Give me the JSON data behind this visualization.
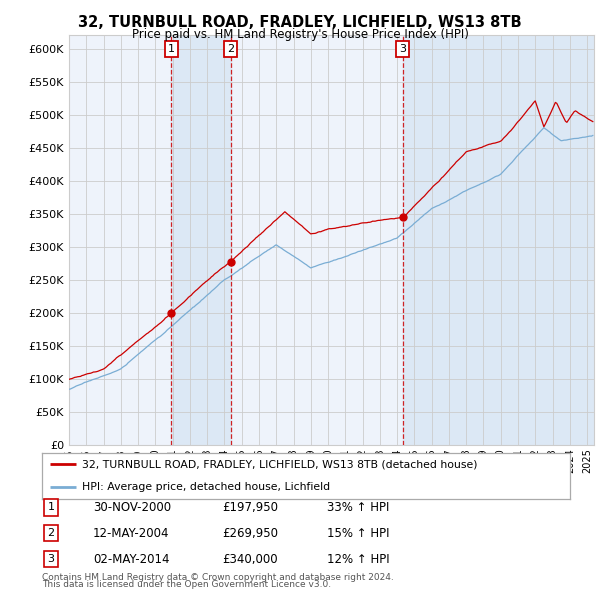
{
  "title": "32, TURNBULL ROAD, FRADLEY, LICHFIELD, WS13 8TB",
  "subtitle": "Price paid vs. HM Land Registry's House Price Index (HPI)",
  "ylim": [
    0,
    620000
  ],
  "yticks": [
    0,
    50000,
    100000,
    150000,
    200000,
    250000,
    300000,
    350000,
    400000,
    450000,
    500000,
    550000,
    600000
  ],
  "ytick_labels": [
    "£0",
    "£50K",
    "£100K",
    "£150K",
    "£200K",
    "£250K",
    "£300K",
    "£350K",
    "£400K",
    "£450K",
    "£500K",
    "£550K",
    "£600K"
  ],
  "legend_line1": "32, TURNBULL ROAD, FRADLEY, LICHFIELD, WS13 8TB (detached house)",
  "legend_line2": "HPI: Average price, detached house, Lichfield",
  "transactions": [
    {
      "num": 1,
      "date": "30-NOV-2000",
      "price": "£197,950",
      "hpi": "33% ↑ HPI",
      "year": 2000.917,
      "value": 197950
    },
    {
      "num": 2,
      "date": "12-MAY-2004",
      "price": "£269,950",
      "hpi": "15% ↑ HPI",
      "year": 2004.37,
      "value": 269950
    },
    {
      "num": 3,
      "date": "02-MAY-2014",
      "price": "£340,000",
      "hpi": "12% ↑ HPI",
      "year": 2014.33,
      "value": 340000
    }
  ],
  "footnote1": "Contains HM Land Registry data © Crown copyright and database right 2024.",
  "footnote2": "This data is licensed under the Open Government Licence v3.0.",
  "red_color": "#cc0000",
  "blue_color": "#7aadd4",
  "shade_color": "#dce8f5",
  "grid_color": "#cccccc",
  "background_color": "#ffffff",
  "plot_bg_color": "#eef3fb",
  "xlim_left": 1995.0,
  "xlim_right": 2025.4
}
